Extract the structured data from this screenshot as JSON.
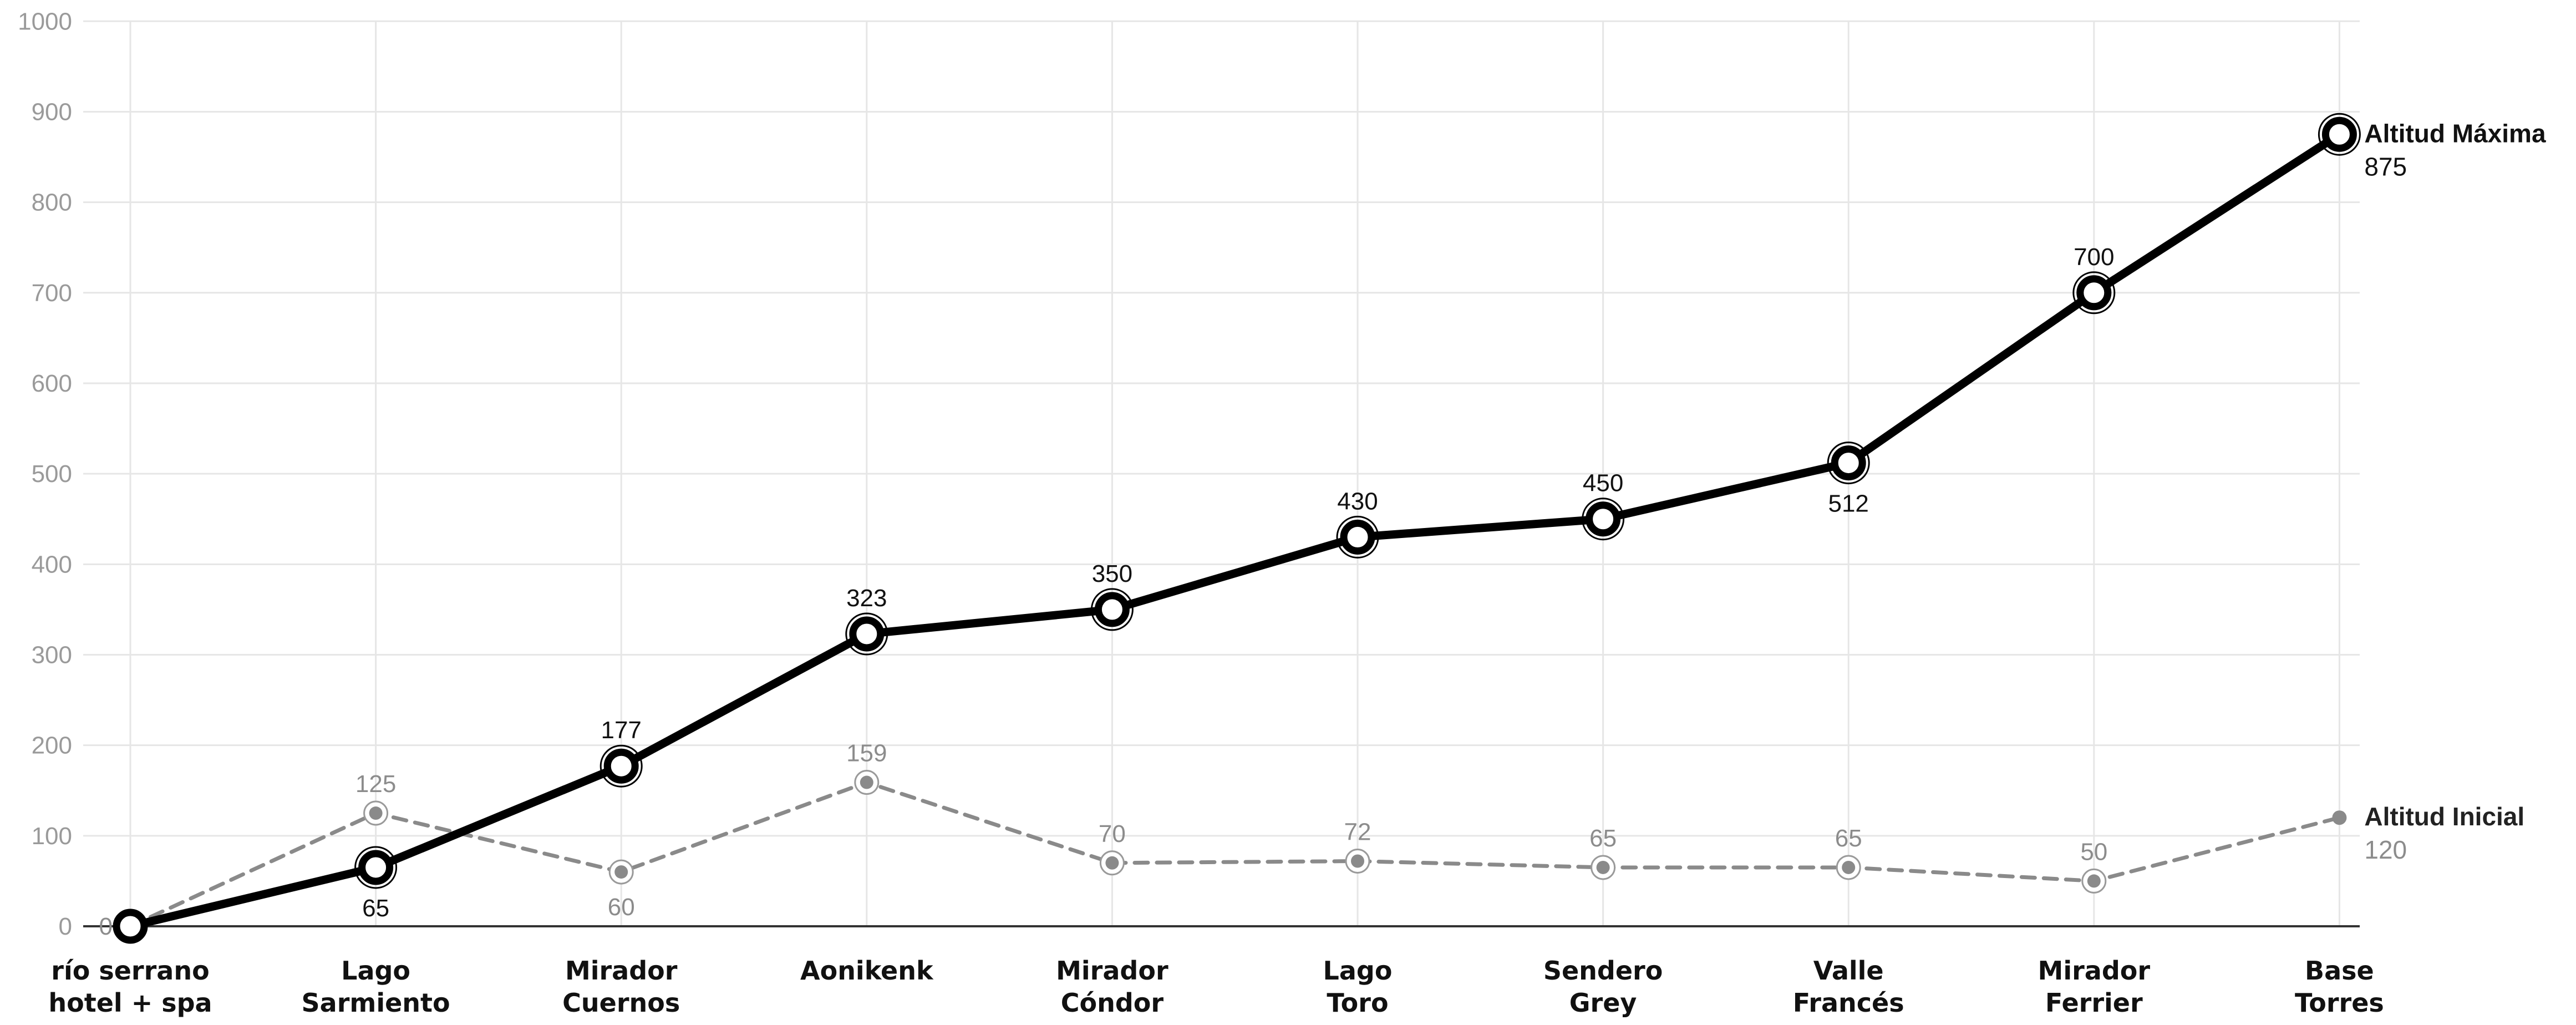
{
  "chart_data": {
    "type": "line",
    "title": "",
    "xlabel": "",
    "ylabel": "",
    "ylim": [
      0,
      1000
    ],
    "yticks": [
      0,
      100,
      200,
      300,
      400,
      500,
      600,
      700,
      800,
      900,
      1000
    ],
    "grid": true,
    "categories": [
      [
        "río serrano",
        "hotel + spa"
      ],
      [
        "Lago",
        "Sarmiento"
      ],
      [
        "Mirador",
        "Cuernos"
      ],
      [
        "Aonikenk"
      ],
      [
        "Mirador",
        "Cóndor"
      ],
      [
        "Lago",
        "Toro"
      ],
      [
        "Sendero",
        "Grey"
      ],
      [
        "Valle",
        "Francés"
      ],
      [
        "Mirador",
        "Ferrier"
      ],
      [
        "Base",
        "Torres"
      ]
    ],
    "series": [
      {
        "name": "Altitud Máxima",
        "values": [
          0,
          65,
          177,
          323,
          350,
          430,
          450,
          512,
          700,
          875
        ],
        "color": "#000000",
        "style": "solid",
        "labels": [
          "",
          "65",
          "177",
          "323",
          "350",
          "430",
          "450",
          "512",
          "700",
          "875"
        ],
        "label_pos": [
          "none",
          "below",
          "above",
          "above",
          "above",
          "above",
          "above",
          "below",
          "above",
          "end"
        ]
      },
      {
        "name": "Altitud Inicial",
        "values": [
          0,
          125,
          60,
          159,
          70,
          72,
          65,
          65,
          50,
          120
        ],
        "color": "#8a8a8a",
        "style": "dashed",
        "labels": [
          "0",
          "125",
          "60",
          "159",
          "70",
          "72",
          "65",
          "65",
          "50",
          "120"
        ],
        "label_pos": [
          "left",
          "above",
          "below",
          "above",
          "above",
          "above",
          "above",
          "above",
          "above",
          "end"
        ]
      }
    ]
  }
}
